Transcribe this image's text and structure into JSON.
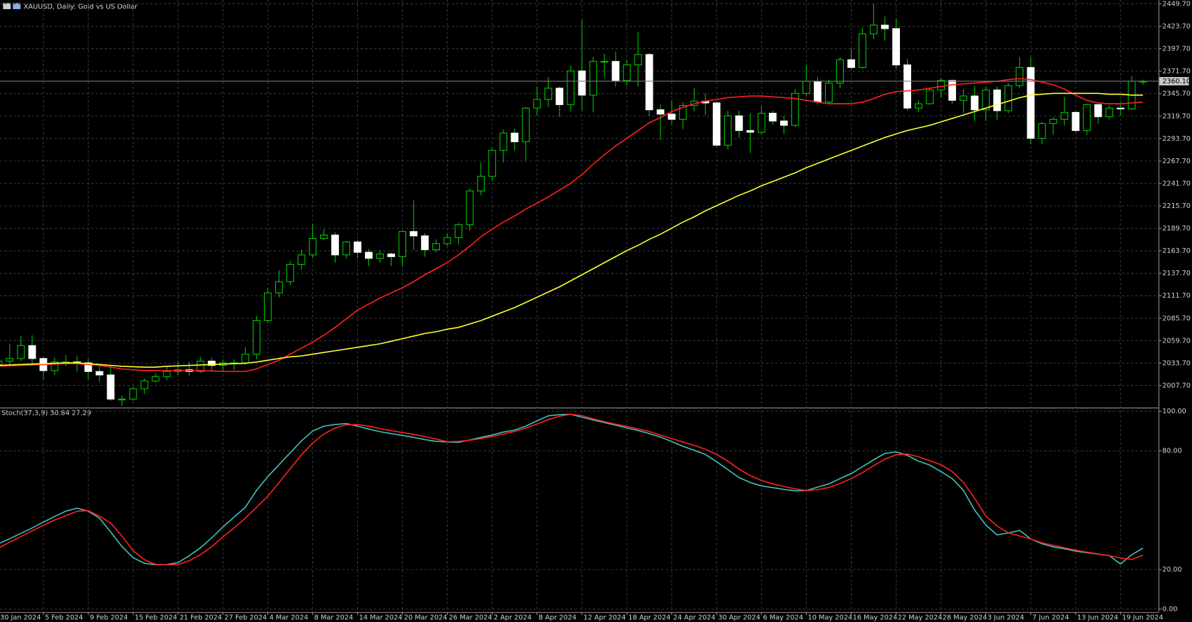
{
  "chart_data": [
    {
      "type": "candlestick",
      "title": "XAUUSD, Daily:  Gold vs US Dollar",
      "categories": [
        "30 Jan 2024",
        null,
        null,
        null,
        "5 Feb 2024",
        null,
        null,
        null,
        "9 Feb 2024",
        null,
        null,
        null,
        "15 Feb 2024",
        null,
        null,
        null,
        "21 Feb 2024",
        null,
        null,
        null,
        "27 Feb 2024",
        null,
        null,
        null,
        "4 Mar 2024",
        null,
        null,
        null,
        "8 Mar 2024",
        null,
        null,
        null,
        "14 Mar 2024",
        null,
        null,
        null,
        "20 Mar 2024",
        null,
        null,
        null,
        "26 Mar 2024",
        null,
        null,
        null,
        "2 Apr 2024",
        null,
        null,
        null,
        "8 Apr 2024",
        null,
        null,
        null,
        "12 Apr 2024",
        null,
        null,
        null,
        "18 Apr 2024",
        null,
        null,
        null,
        "24 Apr 2024",
        null,
        null,
        null,
        "30 Apr 2024",
        null,
        null,
        null,
        "6 May 2024",
        null,
        null,
        null,
        "10 May 2024",
        null,
        null,
        null,
        "16 May 2024",
        null,
        null,
        null,
        "22 May 2024",
        null,
        null,
        null,
        "28 May 2024",
        null,
        null,
        null,
        "3 Jun 2024",
        null,
        null,
        null,
        "7 Jun 2024",
        null,
        null,
        null,
        "13 Jun 2024",
        null,
        null,
        null,
        "19 Jun 2024",
        null,
        null
      ],
      "open": [
        2032,
        2036,
        2039,
        2054,
        2039,
        2025,
        2035,
        2035,
        2034,
        2024,
        2020,
        1992,
        1992,
        2004,
        2013,
        2018,
        2024,
        2026,
        2024,
        2036,
        2031,
        2034,
        2034,
        2044,
        2083,
        2115,
        2128,
        2148,
        2159,
        2178,
        2182,
        2159,
        2174,
        2162,
        2155,
        2160,
        2157,
        2186,
        2181,
        2165,
        2172,
        2179,
        2194,
        2233,
        2250,
        2280,
        2300,
        2290,
        2329,
        2339,
        2352,
        2333,
        2372,
        2344,
        2383,
        2383,
        2361,
        2379,
        2391,
        2327,
        2322,
        2316,
        2332,
        2337,
        2335,
        2286,
        2320,
        2303,
        2301,
        2323,
        2314,
        2309,
        2346,
        2360,
        2336,
        2358,
        2385,
        2376,
        2415,
        2425,
        2421,
        2379,
        2329,
        2334,
        2350,
        2361,
        2338,
        2343,
        2327,
        2350,
        2326,
        2355,
        2376,
        2294,
        2311,
        2316,
        2324,
        2303,
        2333,
        2319,
        2329,
        2328,
        2360
      ],
      "high": [
        2042,
        2056,
        2065,
        2066,
        2040,
        2040,
        2043,
        2042,
        2039,
        2032,
        2031,
        1996,
        2006,
        2016,
        2022,
        2031,
        2035,
        2035,
        2041,
        2040,
        2038,
        2038,
        2052,
        2088,
        2120,
        2141,
        2152,
        2165,
        2195,
        2189,
        2185,
        2175,
        2176,
        2166,
        2164,
        2162,
        2187,
        2222,
        2184,
        2177,
        2184,
        2196,
        2236,
        2266,
        2283,
        2304,
        2305,
        2330,
        2354,
        2365,
        2354,
        2378,
        2431,
        2388,
        2392,
        2394,
        2385,
        2417,
        2393,
        2333,
        2338,
        2336,
        2352,
        2346,
        2336,
        2326,
        2326,
        2323,
        2331,
        2326,
        2320,
        2351,
        2378,
        2365,
        2362,
        2388,
        2398,
        2422,
        2450,
        2435,
        2433,
        2386,
        2338,
        2352,
        2364,
        2362,
        2351,
        2355,
        2354,
        2354,
        2358,
        2388,
        2388,
        2313,
        2318,
        2342,
        2326,
        2334,
        2334,
        2332,
        2336,
        2366,
        2362
      ],
      "low": [
        2030,
        2030,
        2036,
        2031,
        2015,
        2020,
        2030,
        2024,
        2015,
        2012,
        1990,
        1984,
        1990,
        1998,
        2011,
        2014,
        2020,
        2019,
        2022,
        2025,
        2025,
        2026,
        2032,
        2038,
        2080,
        2110,
        2124,
        2142,
        2155,
        2176,
        2150,
        2155,
        2155,
        2146,
        2150,
        2146,
        2146,
        2165,
        2157,
        2162,
        2169,
        2171,
        2187,
        2228,
        2245,
        2266,
        2280,
        2268,
        2320,
        2330,
        2319,
        2325,
        2326,
        2324,
        2365,
        2354,
        2355,
        2354,
        2320,
        2292,
        2310,
        2305,
        2325,
        2321,
        2285,
        2281,
        2295,
        2277,
        2298,
        2310,
        2299,
        2307,
        2343,
        2333,
        2334,
        2352,
        2373,
        2374,
        2409,
        2407,
        2375,
        2326,
        2325,
        2333,
        2341,
        2334,
        2323,
        2314,
        2314,
        2315,
        2323,
        2352,
        2287,
        2287,
        2298,
        2309,
        2301,
        2298,
        2311,
        2316,
        2320,
        2327,
        2356
      ],
      "close": [
        2036,
        2039,
        2054,
        2039,
        2025,
        2035,
        2035,
        2034,
        2024,
        2020,
        1992,
        1992,
        2004,
        2013,
        2018,
        2024,
        2026,
        2024,
        2036,
        2031,
        2034,
        2034,
        2044,
        2083,
        2115,
        2128,
        2148,
        2159,
        2178,
        2182,
        2159,
        2174,
        2162,
        2155,
        2160,
        2157,
        2186,
        2181,
        2165,
        2172,
        2179,
        2194,
        2233,
        2250,
        2280,
        2300,
        2290,
        2329,
        2339,
        2352,
        2333,
        2372,
        2344,
        2383,
        2383,
        2361,
        2379,
        2391,
        2327,
        2322,
        2316,
        2332,
        2337,
        2335,
        2286,
        2320,
        2303,
        2301,
        2323,
        2314,
        2309,
        2346,
        2360,
        2336,
        2358,
        2385,
        2376,
        2415,
        2425,
        2421,
        2379,
        2329,
        2334,
        2350,
        2361,
        2338,
        2343,
        2327,
        2350,
        2326,
        2355,
        2376,
        2294,
        2311,
        2316,
        2324,
        2303,
        2333,
        2319,
        2329,
        2328,
        2360,
        2360.1
      ],
      "bull_fill": "#000000",
      "bear_fill": "#ffffff",
      "outline": "#00c800",
      "series": [
        {
          "color": "#ff2020",
          "values": [
            2030,
            2030.5,
            2031,
            2031.5,
            2032,
            2032.5,
            2033,
            2033,
            2032,
            2031,
            2029,
            2027,
            2026,
            2025,
            2025,
            2025,
            2025,
            2025,
            2025,
            2024.5,
            2024,
            2024,
            2024,
            2027,
            2032,
            2037,
            2044,
            2051,
            2058,
            2066,
            2075,
            2085,
            2095,
            2102,
            2109,
            2115,
            2121,
            2128,
            2136,
            2143,
            2150,
            2159,
            2169,
            2180,
            2189,
            2197,
            2204,
            2212,
            2219,
            2226,
            2234,
            2242,
            2252,
            2264,
            2275,
            2285,
            2294,
            2303,
            2312,
            2318,
            2325,
            2330,
            2334,
            2337,
            2339,
            2341,
            2342,
            2343,
            2343,
            2342,
            2341,
            2340,
            2338,
            2336,
            2334,
            2334,
            2334,
            2336,
            2340,
            2345,
            2348,
            2349,
            2350,
            2352,
            2354,
            2356,
            2357,
            2358,
            2359,
            2360,
            2362,
            2363,
            2362,
            2359,
            2356,
            2351,
            2344,
            2338,
            2335,
            2334,
            2334,
            2335,
            2336
          ]
        },
        {
          "color": "#ffff30",
          "values": [
            2031,
            2031.5,
            2032,
            2032.5,
            2033,
            2033.5,
            2034,
            2034,
            2033,
            2032,
            2031,
            2030,
            2029.5,
            2029,
            2029,
            2030,
            2030.5,
            2031,
            2031.5,
            2032,
            2032.5,
            2033,
            2033.5,
            2035,
            2037,
            2039,
            2041,
            2042,
            2044,
            2046,
            2048,
            2050,
            2052,
            2054,
            2056,
            2059,
            2062,
            2065,
            2068,
            2070,
            2073,
            2075,
            2079,
            2083,
            2088,
            2093,
            2098,
            2104,
            2110,
            2116,
            2122,
            2129,
            2136,
            2143,
            2150,
            2157,
            2164,
            2170,
            2177,
            2183,
            2190,
            2197,
            2203,
            2210,
            2216,
            2222,
            2228,
            2233,
            2239,
            2244,
            2249,
            2254,
            2260,
            2265,
            2270,
            2275,
            2280,
            2285,
            2290,
            2295,
            2299,
            2303,
            2306,
            2309,
            2313,
            2317,
            2321,
            2325,
            2329,
            2333,
            2337,
            2341,
            2344,
            2345,
            2346,
            2346,
            2346,
            2346,
            2346,
            2345,
            2345,
            2344,
            2344
          ]
        }
      ],
      "ylim": [
        1983.1,
        2454.1
      ],
      "yticks": [
        {
          "value": 2007.7,
          "label": "2007.70"
        },
        {
          "value": 2033.7,
          "label": "2033.70"
        },
        {
          "value": 2059.7,
          "label": "2059.70"
        },
        {
          "value": 2085.7,
          "label": "2085.70"
        },
        {
          "value": 2111.7,
          "label": "2111.70"
        },
        {
          "value": 2137.7,
          "label": "2137.70"
        },
        {
          "value": 2163.7,
          "label": "2163.70"
        },
        {
          "value": 2189.7,
          "label": "2189.70"
        },
        {
          "value": 2215.7,
          "label": "2215.70"
        },
        {
          "value": 2241.7,
          "label": "2241.70"
        },
        {
          "value": 2267.7,
          "label": "2267.70"
        },
        {
          "value": 2293.7,
          "label": "2293.70"
        },
        {
          "value": 2319.7,
          "label": "2319.70"
        },
        {
          "value": 2345.7,
          "label": "2345.70"
        },
        {
          "value": 2371.7,
          "label": "2371.70"
        },
        {
          "value": 2397.7,
          "label": "2397.70"
        },
        {
          "value": 2423.7,
          "label": "2423.70"
        },
        {
          "value": 2449.7,
          "label": "2449.70"
        }
      ],
      "last_price": {
        "value": 2360.1,
        "label": "2360.10"
      },
      "grid": true
    },
    {
      "type": "line",
      "title": "Stoch(37,3,9) 30.84 27.29",
      "series": [
        {
          "color": "#40c0c0",
          "values": [
            33,
            35.6,
            38.3,
            41,
            44,
            46.8,
            49.5,
            51,
            49.5,
            46,
            39,
            31.7,
            26,
            23.2,
            22.4,
            22.5,
            23.5,
            27,
            31,
            36,
            41.5,
            46.5,
            51.5,
            60,
            67,
            73,
            79,
            85,
            90,
            92.5,
            93.3,
            93.8,
            92.5,
            91,
            89.7,
            88.7,
            87.8,
            86.8,
            85.7,
            84.8,
            84.5,
            84.3,
            85.5,
            86.8,
            88,
            89.5,
            90.5,
            92.5,
            95.2,
            97.7,
            98.3,
            98.5,
            97,
            95.6,
            94.3,
            93,
            91.6,
            90.3,
            88.7,
            87,
            84.7,
            82.3,
            80.3,
            78.2,
            74.5,
            70.5,
            66.5,
            64,
            62.3,
            61.4,
            60.5,
            59.8,
            59.9,
            61.7,
            63.3,
            66,
            68.5,
            72,
            75.5,
            78.7,
            79.5,
            77.7,
            74.8,
            72.8,
            69.5,
            66,
            60,
            50,
            42.5,
            37.5,
            38.5,
            39.8,
            35.5,
            33,
            31.5,
            30.5,
            29.3,
            28.5,
            27.8,
            27,
            22.8,
            27.5,
            30.84
          ]
        },
        {
          "color": "#ff2020",
          "values": [
            30.9,
            33.8,
            36.7,
            39.6,
            42.4,
            45,
            47.2,
            49.4,
            49.8,
            47,
            43.5,
            37,
            29.5,
            25,
            22.6,
            22.4,
            22.5,
            24.5,
            27.5,
            31.5,
            36.5,
            41,
            46,
            51.5,
            57,
            64,
            71,
            78,
            84,
            88.5,
            91.5,
            93.2,
            93.3,
            92.5,
            91.2,
            90.2,
            89.3,
            88.3,
            87.2,
            86,
            84.6,
            84.8,
            85.4,
            86.2,
            87.3,
            88.5,
            89.8,
            91.5,
            93.6,
            95.8,
            97.5,
            98.5,
            97.8,
            96.2,
            94.8,
            93.5,
            92.4,
            91.1,
            89.8,
            88,
            86.2,
            84.5,
            82.8,
            80.8,
            78.2,
            74.8,
            70.8,
            67.5,
            65,
            63.3,
            62,
            60.8,
            59.9,
            60.4,
            61.5,
            63.5,
            66,
            69,
            72.5,
            75.8,
            78,
            78.4,
            77,
            75,
            73,
            69.5,
            64,
            56,
            47,
            42,
            38.5,
            37,
            35.5,
            33.5,
            32.3,
            31,
            29.8,
            28.8,
            27.9,
            27,
            25.8,
            25.1,
            27.29
          ]
        }
      ],
      "ylim": [
        -1.5,
        101.5
      ],
      "yticks": [
        {
          "value": 0,
          "label": "0.00"
        },
        {
          "value": 20,
          "label": "20.00"
        },
        {
          "value": 80,
          "label": "80.00"
        },
        {
          "value": 100,
          "label": "100.00"
        }
      ],
      "grid": true
    }
  ]
}
